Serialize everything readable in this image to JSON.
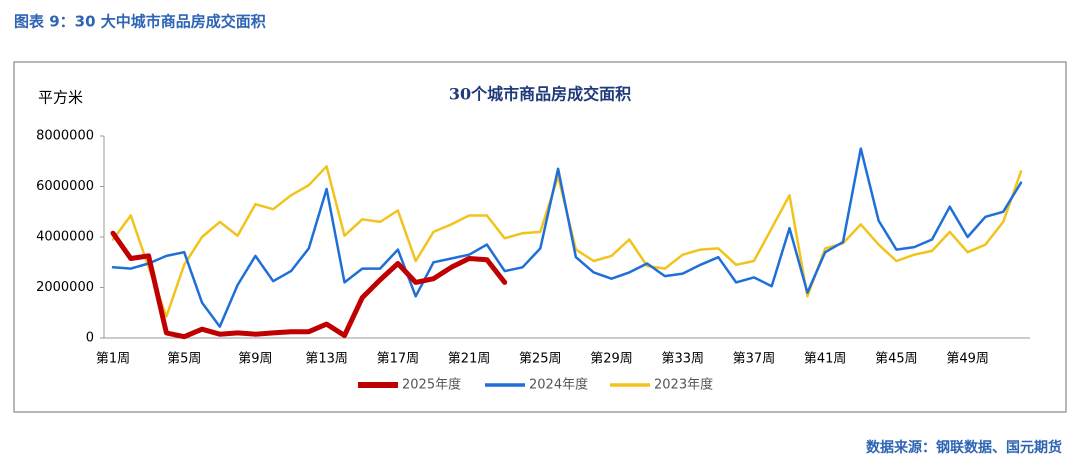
{
  "header": "图表 9：30 大中城市商品房成交面积",
  "source": "数据来源：钢联数据、国元期货",
  "chart_data": {
    "type": "line",
    "title": "30个城市商品房成交面积",
    "y_label": "平方米",
    "categories": [
      "第1周",
      null,
      null,
      null,
      "第5周",
      null,
      null,
      null,
      "第9周",
      null,
      null,
      null,
      "第13周",
      null,
      null,
      null,
      "第17周",
      null,
      null,
      null,
      "第21周",
      null,
      null,
      null,
      "第25周",
      null,
      null,
      null,
      "第29周",
      null,
      null,
      null,
      "第33周",
      null,
      null,
      null,
      "第37周",
      null,
      null,
      null,
      "第41周",
      null,
      null,
      null,
      "第45周",
      null,
      null,
      null,
      "第49周",
      null,
      null,
      null
    ],
    "ylim": [
      0,
      8000000
    ],
    "yticks": [
      0,
      2000000,
      4000000,
      6000000,
      8000000
    ],
    "grid": false,
    "legend": "bottom",
    "series": [
      {
        "name": "2025年度",
        "color": "#c00000",
        "width": 5,
        "values": [
          4150000,
          3150000,
          3250000,
          200000,
          50000,
          350000,
          150000,
          200000,
          150000,
          200000,
          250000,
          250000,
          550000,
          100000,
          1600000,
          2300000,
          2950000,
          2200000,
          2350000,
          2800000,
          3150000,
          3100000,
          2200000,
          null,
          null,
          null,
          null,
          null,
          null,
          null,
          null,
          null,
          null,
          null,
          null,
          null,
          null,
          null,
          null,
          null,
          null,
          null,
          null,
          null,
          null,
          null,
          null,
          null,
          null,
          null,
          null,
          null
        ]
      },
      {
        "name": "2024年度",
        "color": "#1f6fd8",
        "width": 2.5,
        "values": [
          2800000,
          2750000,
          2950000,
          3250000,
          3400000,
          1400000,
          450000,
          2100000,
          3250000,
          2250000,
          2650000,
          3550000,
          5900000,
          2200000,
          2750000,
          2750000,
          3500000,
          1650000,
          3000000,
          3150000,
          3300000,
          3700000,
          2650000,
          2800000,
          3550000,
          6700000,
          3200000,
          2600000,
          2350000,
          2600000,
          2950000,
          2450000,
          2550000,
          2900000,
          3200000,
          2200000,
          2400000,
          2050000,
          4350000,
          1800000,
          3400000,
          3800000,
          7500000,
          4650000,
          3500000,
          3600000,
          3900000,
          5200000,
          4000000,
          4800000,
          5000000,
          6150000
        ]
      },
      {
        "name": "2023年度",
        "color": "#f2c31b",
        "width": 2.5,
        "values": [
          3900000,
          4850000,
          2800000,
          850000,
          2900000,
          4000000,
          4600000,
          4050000,
          5300000,
          5100000,
          5650000,
          6050000,
          6800000,
          4050000,
          4700000,
          4600000,
          5050000,
          3050000,
          4200000,
          4500000,
          4850000,
          4850000,
          3950000,
          4150000,
          4200000,
          6400000,
          3500000,
          3050000,
          3250000,
          3900000,
          2850000,
          2750000,
          3300000,
          3500000,
          3550000,
          2900000,
          3050000,
          4350000,
          5650000,
          1650000,
          3550000,
          3750000,
          4500000,
          3700000,
          3050000,
          3300000,
          3450000,
          4200000,
          3400000,
          3700000,
          4600000,
          6600000
        ]
      }
    ]
  }
}
